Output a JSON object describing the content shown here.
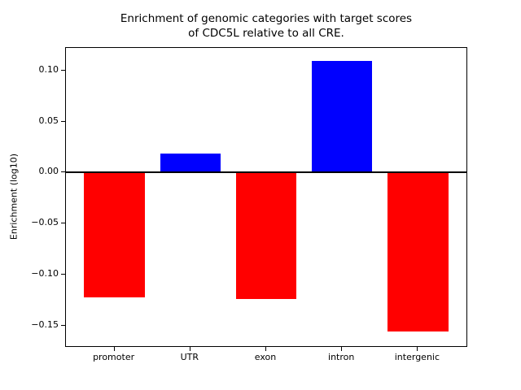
{
  "figure": {
    "title_line1": "Enrichment of genomic categories with target scores",
    "title_line2": "of CDC5L relative to all CRE.",
    "ylabel": "Enrichment (log10)"
  },
  "chart_data": {
    "type": "bar",
    "title": "Enrichment of genomic categories with target scores\nof CDC5L relative to all CRE.",
    "xlabel": "",
    "ylabel": "Enrichment (log10)",
    "categories": [
      "promoter",
      "UTR",
      "exon",
      "intron",
      "intergenic"
    ],
    "values": [
      -0.122,
      0.019,
      -0.124,
      0.109,
      -0.156
    ],
    "bar_colors": [
      "#ff0000",
      "#0000ff",
      "#ff0000",
      "#0000ff",
      "#ff0000"
    ],
    "positive_color": "#0000ff",
    "negative_color": "#ff0000",
    "zero_line_color": "#000000",
    "ylim": [
      -0.17,
      0.122
    ],
    "yticks": [
      0.1,
      0.05,
      0.0,
      -0.05,
      -0.1,
      -0.15
    ],
    "ytick_labels": [
      "0.10",
      "0.05",
      "0.00",
      "−0.05",
      "−0.10",
      "−0.15"
    ],
    "bar_width_frac": 0.8,
    "x_margin_frac": 0.05,
    "grid": false,
    "legend": null,
    "zero_line": true
  }
}
